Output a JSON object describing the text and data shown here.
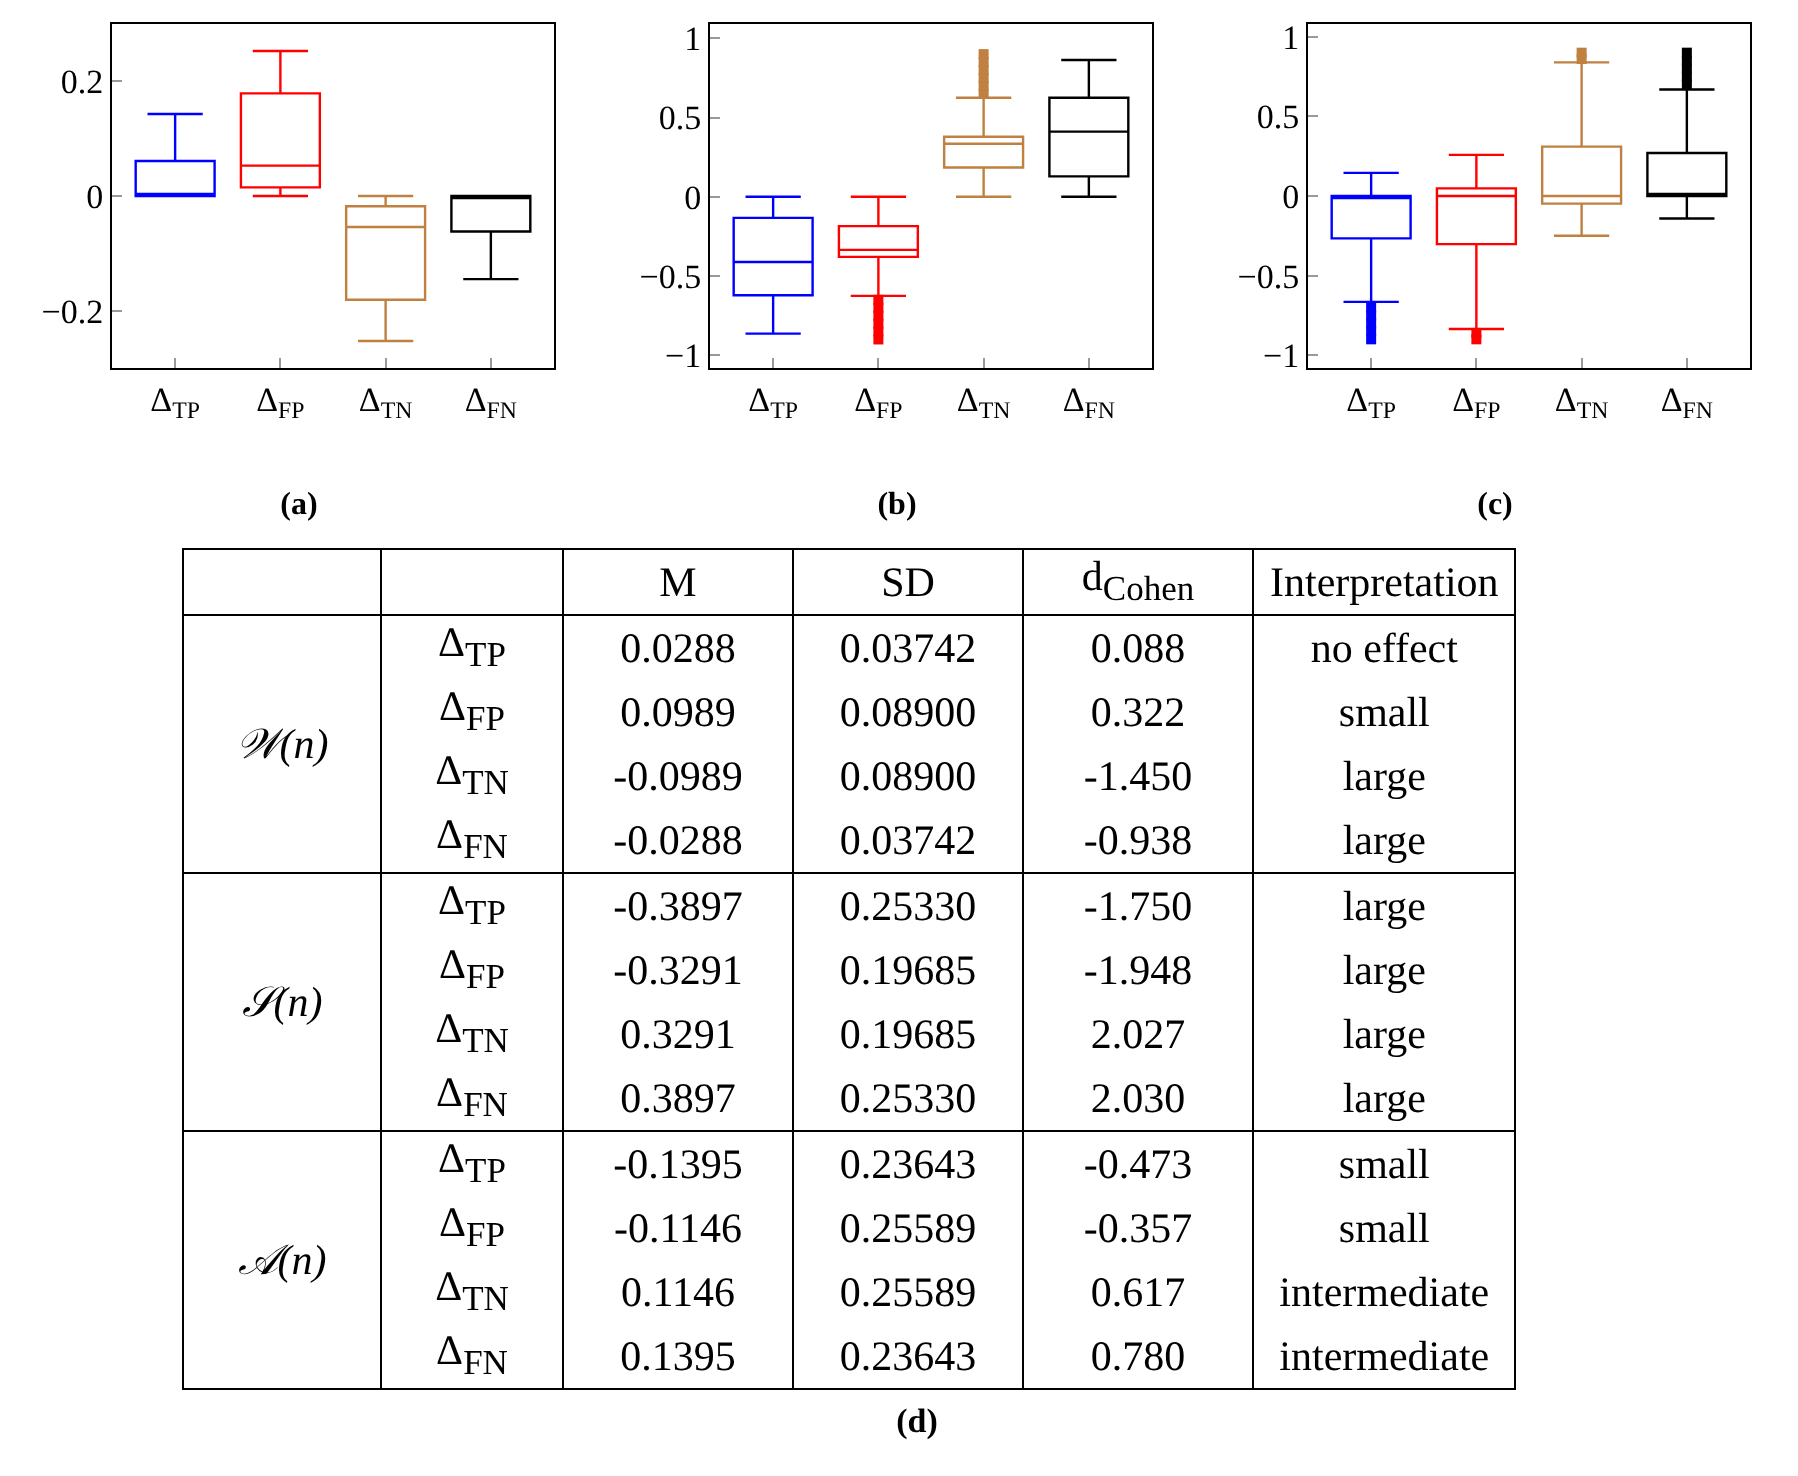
{
  "chart_data": [
    {
      "type": "box",
      "title": "(a)",
      "categories": [
        "Δ$_{TP}$",
        "Δ$_{FP}$",
        "Δ$_{TN}$",
        "Δ$_{FN}$"
      ],
      "colors": [
        "#0000ff",
        "#ff0000",
        "#bf8040",
        "#000000"
      ],
      "boxes": [
        {
          "low": 0,
          "q1": 0,
          "median": 0,
          "q3": 0.061,
          "high": 0.143
        },
        {
          "low": 0,
          "q1": 0.015,
          "median": 0.053,
          "q3": 0.179,
          "high": 0.253
        },
        {
          "low": -0.253,
          "q1": -0.181,
          "median": -0.054,
          "q3": -0.018,
          "high": 0
        },
        {
          "low": -0.145,
          "q1": -0.062,
          "median": 0,
          "q3": 0,
          "high": 0
        }
      ],
      "ylim": [
        -0.3,
        0.3
      ],
      "yticks": [
        {
          "value": -0.2,
          "label": "−0.2"
        },
        0,
        0.2
      ],
      "grid": false
    },
    {
      "type": "box",
      "title": "(b)",
      "categories": [
        "Δ$_{TP}$",
        "Δ$_{FP}$",
        "Δ$_{TN}$",
        "Δ$_{FN}$"
      ],
      "colors": [
        "#0000ff",
        "#ff0000",
        "#bf8040",
        "#000000"
      ],
      "boxes": [
        {
          "low": -0.863,
          "q1": -0.621,
          "median": -0.411,
          "q3": -0.133,
          "high": 0
        },
        {
          "low": -0.625,
          "q1": -0.379,
          "median": -0.335,
          "q3": -0.185,
          "high": 0,
          "outliers": [
            -0.65,
            -0.7,
            -0.75,
            -0.8,
            -0.85,
            -0.9
          ]
        },
        {
          "low": 0,
          "q1": 0.185,
          "median": 0.335,
          "q3": 0.379,
          "high": 0.625,
          "outliers": [
            0.65,
            0.7,
            0.75,
            0.8,
            0.85,
            0.9
          ]
        },
        {
          "low": 0,
          "q1": 0.129,
          "median": 0.411,
          "q3": 0.625,
          "high": 0.863
        }
      ],
      "ylim": [
        -1.08,
        1.09
      ],
      "yticks": [
        {
          "value": -1,
          "label": "−1"
        },
        {
          "value": -0.5,
          "label": "−0.5"
        },
        0,
        0.5,
        1
      ],
      "grid": false
    },
    {
      "type": "box",
      "title": "(c)",
      "categories": [
        "Δ$_{TP}$",
        "Δ$_{FP}$",
        "Δ$_{TN}$",
        "Δ$_{FN}$"
      ],
      "colors": [
        "#0000ff",
        "#ff0000",
        "#bf8040",
        "#000000"
      ],
      "boxes": [
        {
          "low": -0.665,
          "q1": -0.266,
          "median": 0,
          "q3": 0,
          "high": 0.145,
          "outliers": [
            -0.7,
            -0.75,
            -0.8,
            -0.85,
            -0.9
          ]
        },
        {
          "low": -0.835,
          "q1": -0.302,
          "median": 0,
          "q3": 0.048,
          "high": 0.258,
          "outliers": [
            -0.86,
            -0.9
          ]
        },
        {
          "low": -0.25,
          "q1": -0.048,
          "median": 0,
          "q3": 0.31,
          "high": 0.839,
          "outliers": [
            0.86,
            0.9
          ]
        },
        {
          "low": -0.141,
          "q1": 0,
          "median": 0,
          "q3": 0.27,
          "high": 0.669,
          "outliers": [
            0.7,
            0.75,
            0.8,
            0.85,
            0.9
          ]
        }
      ],
      "ylim": [
        -1.08,
        1.08
      ],
      "yticks": [
        {
          "value": -1,
          "label": "−1"
        },
        {
          "value": -0.5,
          "label": "−0.5"
        },
        0,
        0.5,
        1
      ],
      "grid": false
    },
    {
      "type": "other",
      "title": "(d)",
      "categories": [
        "M",
        "SD",
        "d$_{Cohen}$",
        "Interpretation"
      ],
      "y_categories": [
        "Δ$_{TP}$",
        "Δ$_{FP}$",
        "Δ$_{TN}$",
        "Δ$_{FN}$",
        "Δ$_{TP}$",
        "Δ$_{FP}$",
        "Δ$_{TN}$",
        "Δ$_{FN}$",
        "Δ$_{TP}$",
        "Δ$_{FP}$",
        "Δ$_{TN}$",
        "Δ$_{FN}$"
      ],
      "annotations": [
        "𝒲(n)",
        "𝒮(n)",
        "𝒜(n)"
      ],
      "cell_labels": [
        [
          "0.0288",
          "0.03742",
          "0.088",
          "no effect"
        ],
        [
          "0.0989",
          "0.08900",
          "0.322",
          "small"
        ],
        [
          "-0.0989",
          "0.08900",
          "-1.450",
          "large"
        ],
        [
          "-0.0288",
          "0.03742",
          "-0.938",
          "large"
        ],
        [
          "-0.3897",
          "0.25330",
          "-1.750",
          "large"
        ],
        [
          "-0.3291",
          "0.19685",
          "-1.948",
          "large"
        ],
        [
          "0.3291",
          "0.19685",
          "2.027",
          "large"
        ],
        [
          "0.3897",
          "0.25330",
          "2.030",
          "large"
        ],
        [
          "-0.1395",
          "0.23643",
          "-0.473",
          "small"
        ],
        [
          "-0.1146",
          "0.25589",
          "-0.357",
          "small"
        ],
        [
          "0.1146",
          "0.25589",
          "0.617",
          "intermediate"
        ],
        [
          "0.1395",
          "0.23643",
          "0.780",
          "intermediate"
        ]
      ]
    }
  ]
}
